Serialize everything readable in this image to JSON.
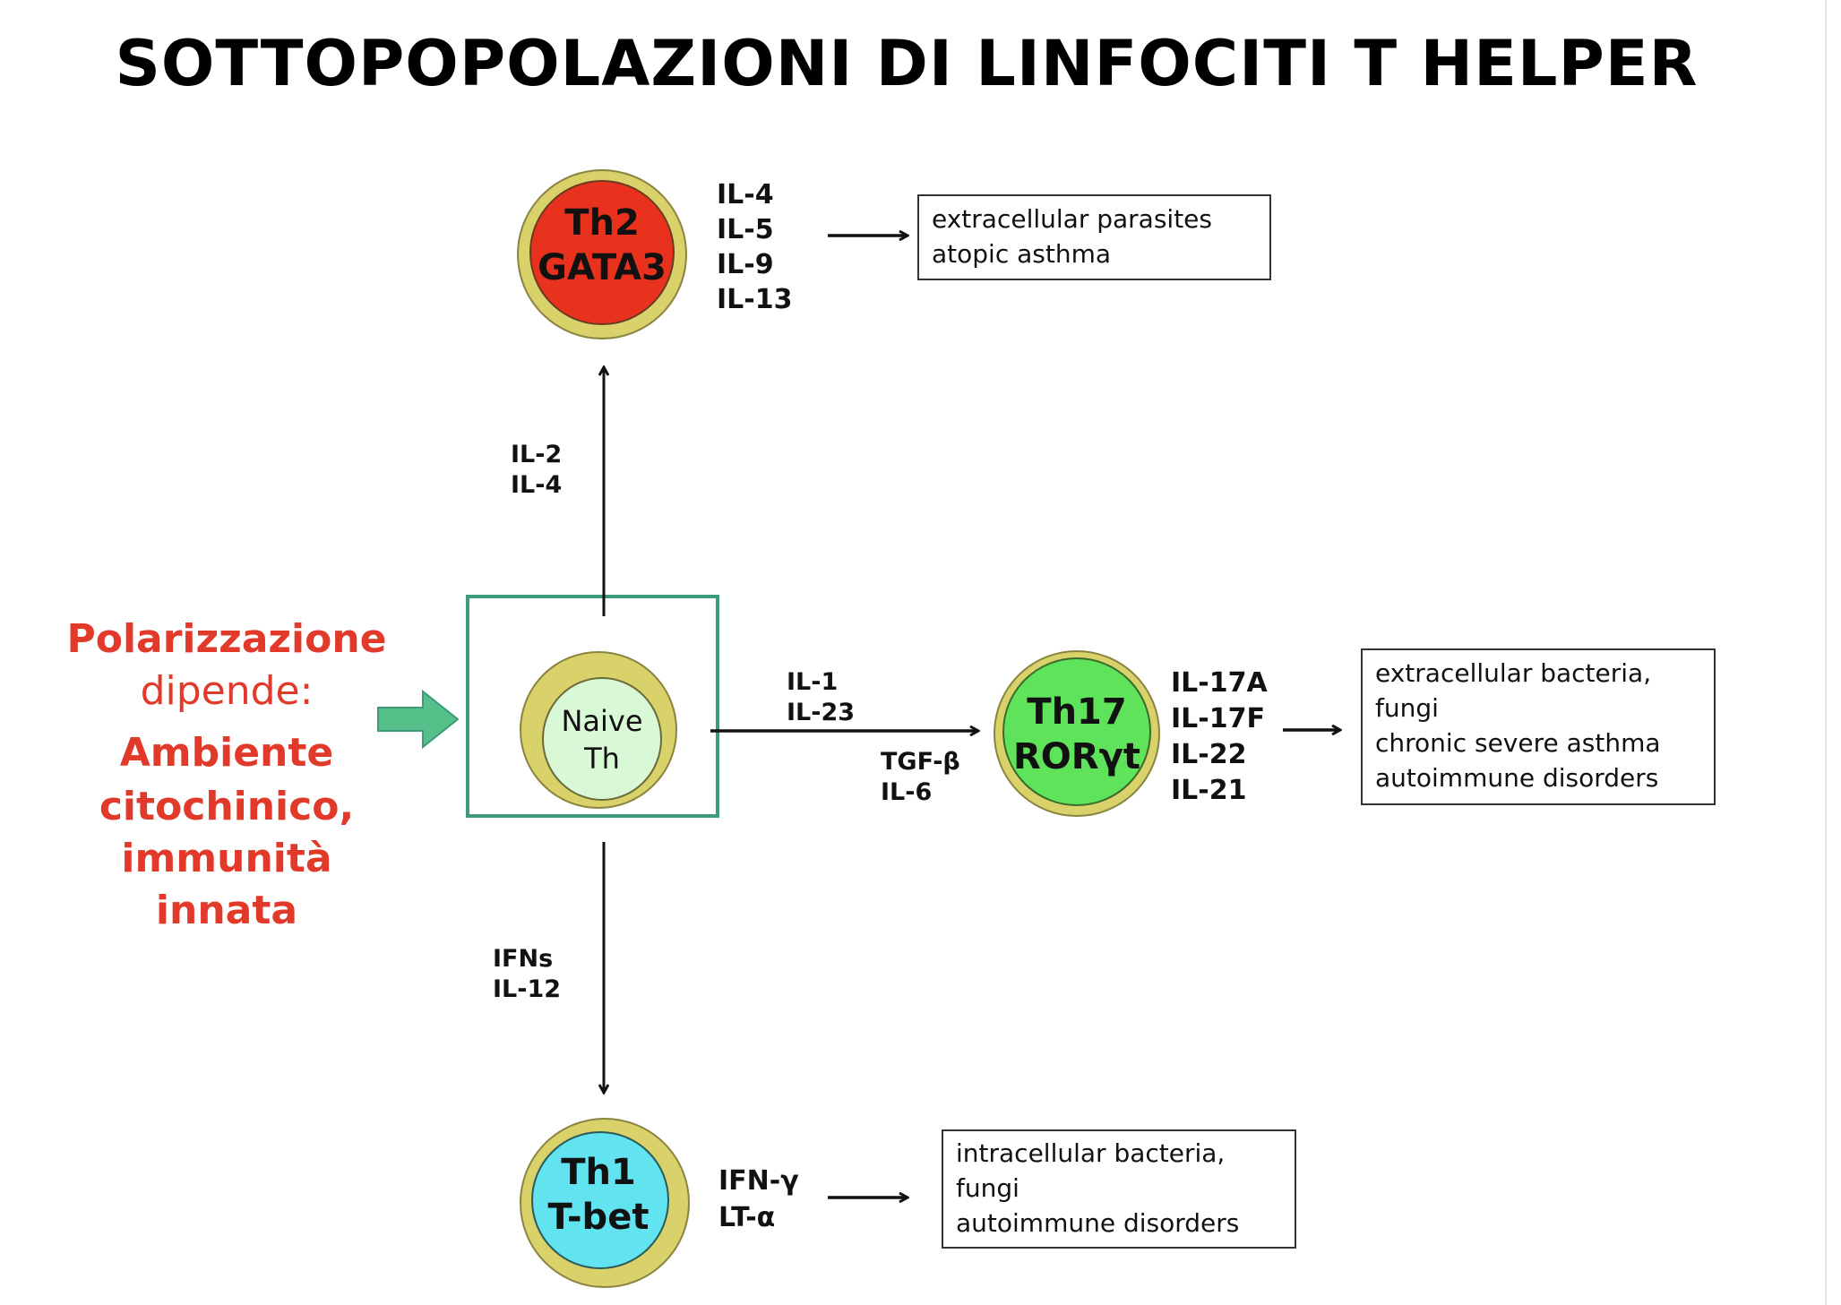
{
  "title": "SOTTOPOPOLAZIONI DI LINFOCITI T HELPER",
  "colors": {
    "th2": "#e8321e",
    "th17": "#5ee35a",
    "th1": "#62e3f0",
    "naive": "#d9f8d6",
    "ring": "#d9d16a",
    "frame": "#3d9b7b",
    "polarization_text": "#e23a2a",
    "input_arrow": "#55c08a"
  },
  "polarization": {
    "line1": "Polarizzazione",
    "line2": "dipende:",
    "line3": "Ambiente",
    "line4": "citochinico,",
    "line5": "immunità",
    "line6": "innata"
  },
  "naive": {
    "line1": "Naive",
    "line2": "Th"
  },
  "th2": {
    "name": "Th2",
    "factor": "GATA3",
    "inducers": [
      "IL-2",
      "IL-4"
    ],
    "cytokines": [
      "IL-4",
      "IL-5",
      "IL-9",
      "IL-13"
    ],
    "outcomes": [
      "extracellular parasites",
      "atopic asthma"
    ]
  },
  "th17": {
    "name": "Th17",
    "factor": "RORγt",
    "inducers_top": [
      "IL-1",
      "IL-23"
    ],
    "inducers_bottom": [
      "TGF-β",
      "IL-6"
    ],
    "cytokines": [
      "IL-17A",
      "IL-17F",
      "IL-22",
      "IL-21"
    ],
    "outcomes": [
      "extracellular bacteria,",
      "fungi",
      "chronic severe asthma",
      "autoimmune disorders"
    ]
  },
  "th1": {
    "name": "Th1",
    "factor": "T-bet",
    "inducers": [
      "IFNs",
      "IL-12"
    ],
    "cytokines": [
      "IFN-γ",
      "LT-α"
    ],
    "outcomes": [
      "intracellular bacteria,",
      "fungi",
      "autoimmune disorders"
    ]
  }
}
